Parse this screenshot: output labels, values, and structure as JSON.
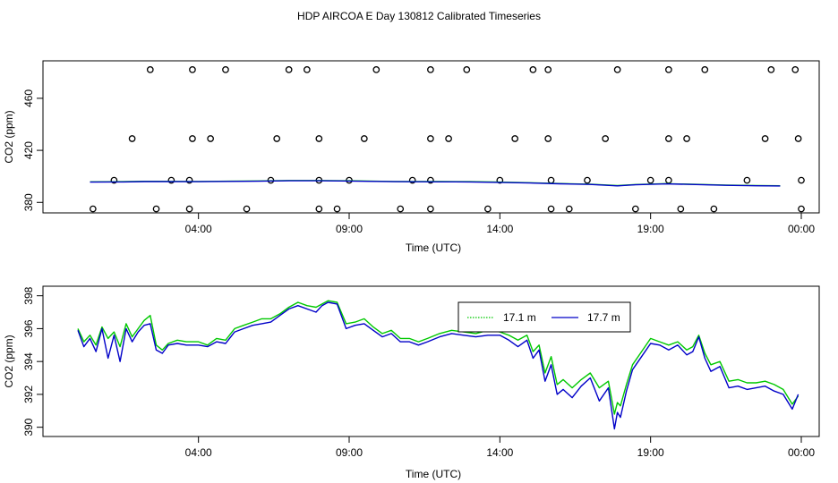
{
  "chart_data": [
    {
      "type": "scatter",
      "title": "HDP AIRCOA E  Day 130812  Calibrated Timeseries",
      "xlabel": "Time (UTC)",
      "ylabel": "CO2 (ppm)",
      "x_ticks": [
        "04:00",
        "09:00",
        "14:00",
        "19:00",
        "00:00"
      ],
      "x_tick_values": [
        4,
        9,
        14,
        19,
        24
      ],
      "y_ticks": [
        380,
        420,
        460
      ],
      "xlim": [
        0,
        24
      ],
      "ylim": [
        374,
        484
      ],
      "calibration_points": {
        "levels_ppm": [
          375,
          397,
          429,
          482
        ],
        "times_level_375": [
          0.5,
          2.6,
          3.7,
          5.6,
          8.0,
          8.6,
          10.7,
          11.7,
          13.6,
          15.7,
          16.3,
          18.5,
          20.0,
          21.1,
          24.0
        ],
        "times_level_397": [
          1.2,
          3.1,
          3.7,
          6.4,
          8.0,
          9.0,
          11.1,
          11.7,
          14.0,
          15.7,
          16.9,
          19.0,
          19.6,
          22.2,
          24.0
        ],
        "times_level_429": [
          1.8,
          3.8,
          4.4,
          6.6,
          8.0,
          9.5,
          11.7,
          12.3,
          14.5,
          15.6,
          17.5,
          19.6,
          20.2,
          22.8,
          23.9
        ],
        "times_level_482": [
          2.4,
          3.8,
          4.9,
          7.0,
          7.6,
          9.9,
          11.7,
          12.9,
          15.1,
          15.6,
          17.9,
          19.6,
          20.8,
          23.0,
          23.8
        ]
      },
      "series": [
        {
          "name": "17.1 m",
          "color": "#00c800",
          "x": [
            0.4,
            1.5,
            2.2,
            2.6,
            4.0,
            6.0,
            7.0,
            8.0,
            9.0,
            10.5,
            12.0,
            13.0,
            14.0,
            15.0,
            16.0,
            17.0,
            17.9,
            18.5,
            19.5,
            20.5,
            21.5,
            22.5,
            23.3
          ],
          "values": [
            395.8,
            395.9,
            396.2,
            396.2,
            396.1,
            396.5,
            396.8,
            396.8,
            396.6,
            396.1,
            396.0,
            395.9,
            395.6,
            395.1,
            394.5,
            394.0,
            392.9,
            393.7,
            394.4,
            393.9,
            393.3,
            393.0,
            392.8
          ]
        },
        {
          "name": "17.7 m",
          "color": "#0000c8",
          "x": [
            0.4,
            1.5,
            2.2,
            2.6,
            4.0,
            6.0,
            7.0,
            8.0,
            9.0,
            10.5,
            12.0,
            13.0,
            14.0,
            15.0,
            16.0,
            17.0,
            17.9,
            18.5,
            19.5,
            20.5,
            21.5,
            22.5,
            23.3
          ],
          "values": [
            395.6,
            395.7,
            396.0,
            396.0,
            395.9,
            396.3,
            396.6,
            396.6,
            396.4,
            395.9,
            395.8,
            395.7,
            395.4,
            394.9,
            394.3,
            393.8,
            392.7,
            393.5,
            394.2,
            393.7,
            393.1,
            392.8,
            392.6
          ]
        }
      ]
    },
    {
      "type": "line",
      "xlabel": "Time (UTC)",
      "ylabel": "CO2 (ppm)",
      "x_ticks": [
        "04:00",
        "09:00",
        "14:00",
        "19:00",
        "00:00"
      ],
      "x_tick_values": [
        4,
        9,
        14,
        19,
        24
      ],
      "y_ticks": [
        390,
        392,
        394,
        396,
        398
      ],
      "xlim": [
        0,
        24
      ],
      "ylim": [
        389.6,
        398.2
      ],
      "legend_position": "top-center",
      "series": [
        {
          "name": "17.1 m",
          "color": "#00c800",
          "line_style": "dotted",
          "x": [
            0.0,
            0.2,
            0.4,
            0.6,
            0.8,
            1.0,
            1.2,
            1.4,
            1.6,
            1.8,
            2.0,
            2.2,
            2.4,
            2.6,
            2.8,
            3.0,
            3.3,
            3.6,
            4.0,
            4.3,
            4.6,
            4.9,
            5.2,
            5.5,
            5.8,
            6.1,
            6.4,
            6.7,
            7.0,
            7.3,
            7.6,
            7.9,
            8.1,
            8.3,
            8.6,
            8.9,
            9.2,
            9.5,
            9.8,
            10.1,
            10.4,
            10.7,
            11.0,
            11.3,
            11.6,
            12.0,
            12.4,
            12.8,
            13.2,
            13.6,
            14.0,
            14.3,
            14.6,
            14.9,
            15.1,
            15.3,
            15.5,
            15.7,
            15.9,
            16.1,
            16.4,
            16.7,
            17.0,
            17.3,
            17.6,
            17.8,
            17.9,
            18.0,
            18.2,
            18.4,
            18.7,
            19.0,
            19.3,
            19.6,
            19.9,
            20.2,
            20.4,
            20.6,
            20.8,
            21.0,
            21.3,
            21.6,
            21.9,
            22.2,
            22.5,
            22.8,
            23.1,
            23.4,
            23.7,
            23.9
          ],
          "values": [
            396.0,
            395.2,
            395.6,
            395.0,
            396.1,
            395.4,
            395.8,
            394.9,
            396.3,
            395.5,
            396.0,
            396.5,
            396.8,
            395.0,
            394.7,
            395.1,
            395.3,
            395.2,
            395.2,
            395.0,
            395.4,
            395.3,
            396.0,
            396.2,
            396.4,
            396.6,
            396.6,
            396.9,
            397.3,
            397.6,
            397.4,
            397.3,
            397.5,
            397.7,
            397.6,
            396.3,
            396.4,
            396.6,
            396.1,
            395.7,
            395.9,
            395.4,
            395.4,
            395.2,
            395.4,
            395.7,
            395.9,
            395.8,
            395.7,
            395.9,
            395.8,
            395.6,
            395.3,
            395.6,
            394.6,
            395.0,
            393.3,
            394.3,
            392.6,
            392.9,
            392.4,
            392.9,
            393.3,
            392.4,
            392.8,
            390.8,
            391.5,
            391.3,
            392.6,
            393.8,
            394.6,
            395.4,
            395.2,
            395.0,
            395.2,
            394.7,
            394.9,
            395.6,
            394.5,
            393.8,
            394.0,
            392.8,
            392.9,
            392.7,
            392.7,
            392.8,
            392.6,
            392.3,
            391.4,
            391.9
          ]
        },
        {
          "name": "17.7 m",
          "color": "#0000c8",
          "line_style": "solid",
          "x": [
            0.0,
            0.2,
            0.4,
            0.6,
            0.8,
            1.0,
            1.2,
            1.4,
            1.6,
            1.8,
            2.0,
            2.2,
            2.4,
            2.6,
            2.8,
            3.0,
            3.3,
            3.6,
            4.0,
            4.3,
            4.6,
            4.9,
            5.2,
            5.5,
            5.8,
            6.1,
            6.4,
            6.7,
            7.0,
            7.3,
            7.6,
            7.9,
            8.1,
            8.3,
            8.6,
            8.9,
            9.2,
            9.5,
            9.8,
            10.1,
            10.4,
            10.7,
            11.0,
            11.3,
            11.6,
            12.0,
            12.4,
            12.8,
            13.2,
            13.6,
            14.0,
            14.3,
            14.6,
            14.9,
            15.1,
            15.3,
            15.5,
            15.7,
            15.9,
            16.1,
            16.4,
            16.7,
            17.0,
            17.3,
            17.6,
            17.8,
            17.9,
            18.0,
            18.2,
            18.4,
            18.7,
            19.0,
            19.3,
            19.6,
            19.9,
            20.2,
            20.4,
            20.6,
            20.8,
            21.0,
            21.3,
            21.6,
            21.9,
            22.2,
            22.5,
            22.8,
            23.1,
            23.4,
            23.7,
            23.9
          ],
          "values": [
            395.9,
            394.9,
            395.4,
            394.6,
            396.0,
            394.2,
            395.6,
            394.0,
            396.0,
            395.2,
            395.8,
            396.2,
            396.3,
            394.7,
            394.5,
            395.0,
            395.1,
            395.0,
            395.0,
            394.9,
            395.2,
            395.1,
            395.8,
            396.0,
            396.2,
            396.3,
            396.4,
            396.8,
            397.2,
            397.4,
            397.2,
            397.0,
            397.4,
            397.6,
            397.5,
            396.0,
            396.2,
            396.3,
            395.9,
            395.5,
            395.7,
            395.2,
            395.2,
            395.0,
            395.2,
            395.5,
            395.7,
            395.6,
            395.5,
            395.6,
            395.6,
            395.3,
            394.9,
            395.3,
            394.2,
            394.7,
            392.8,
            393.8,
            392.0,
            392.3,
            391.8,
            392.5,
            393.0,
            391.6,
            392.4,
            389.9,
            390.9,
            390.6,
            392.2,
            393.5,
            394.3,
            395.1,
            395.0,
            394.7,
            395.0,
            394.4,
            394.6,
            395.5,
            394.2,
            393.4,
            393.7,
            392.4,
            392.5,
            392.3,
            392.4,
            392.5,
            392.2,
            392.0,
            391.1,
            392.0
          ]
        }
      ]
    }
  ]
}
